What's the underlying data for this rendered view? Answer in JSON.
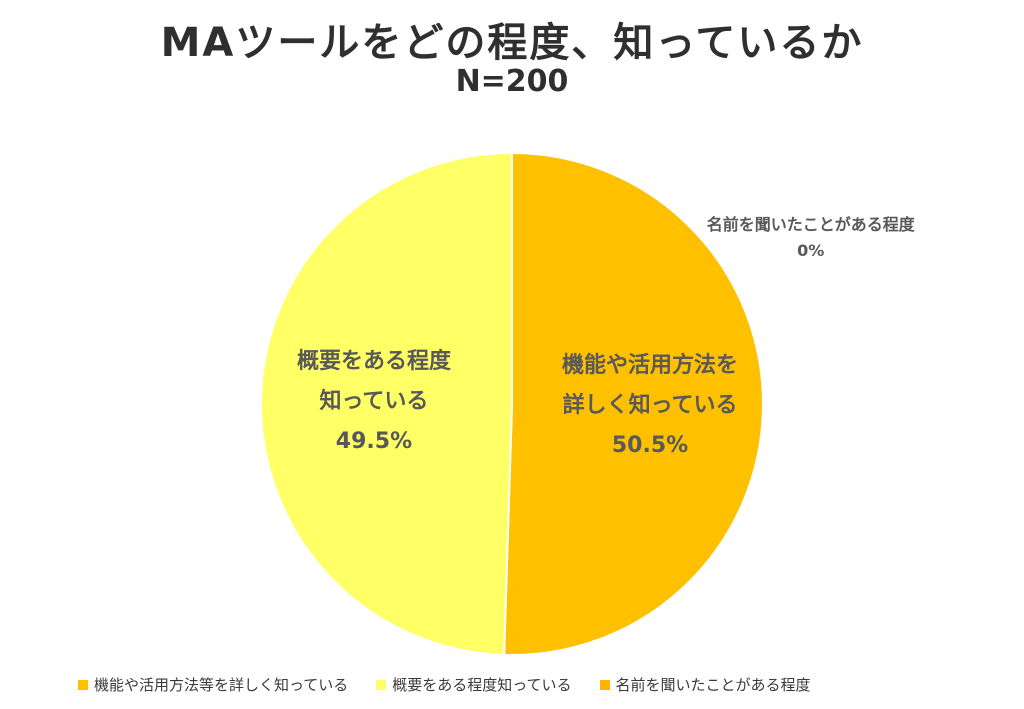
{
  "header": {
    "title": "MAツールをどの程度、知っているか",
    "subtitle": "N=200"
  },
  "chart_data": {
    "type": "pie",
    "title": "MAツールをどの程度、知っているか",
    "subtitle": "N=200",
    "slices": [
      {
        "legend_label": "機能や活用方法等を詳しく知っている",
        "label_lines": [
          "機能や活用方法を",
          "詳しく知っている"
        ],
        "value": 50.5,
        "value_label": "50.5%",
        "color": "#FFC000"
      },
      {
        "legend_label": "概要をある程度知っている",
        "label_lines": [
          "概要をある程度",
          "知っている"
        ],
        "value": 49.5,
        "value_label": "49.5%",
        "color": "#FFFF66"
      },
      {
        "legend_label": "名前を聞いたことがある程度",
        "label_lines": [
          "名前を聞いたことがある程度"
        ],
        "value": 0,
        "value_label": "0%",
        "color": "#FFB300"
      }
    ],
    "legend_position": "bottom",
    "label_text_color": "#595959"
  }
}
